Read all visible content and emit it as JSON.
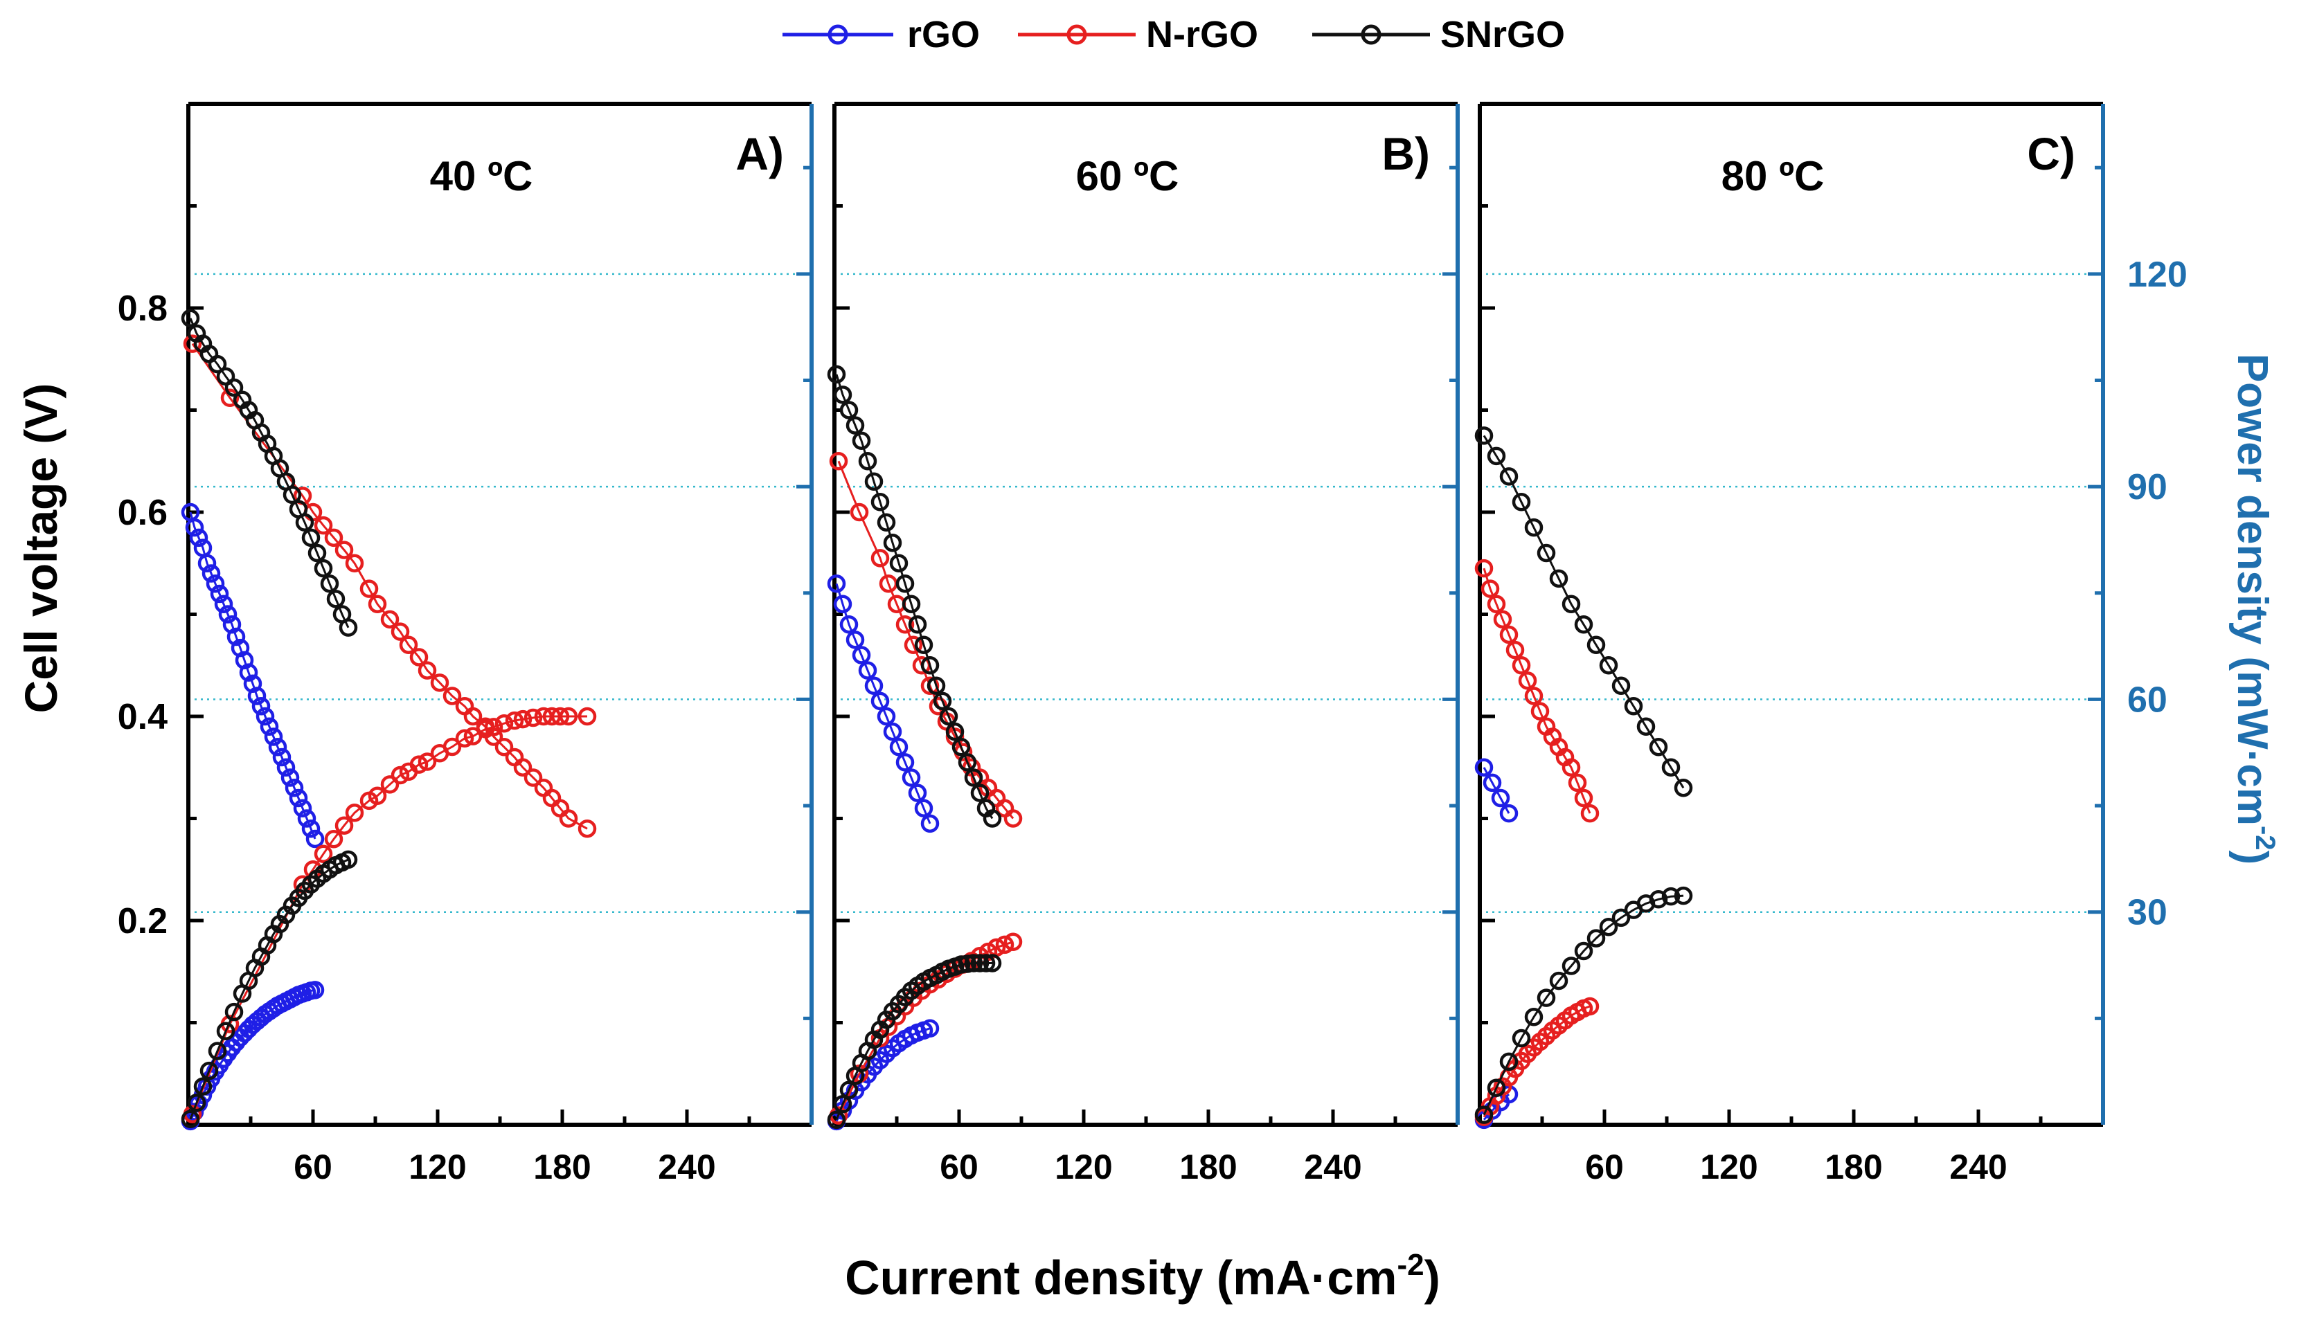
{
  "chart_data": {
    "type": "scatter",
    "xlabel_main": "Current density (mA·cm",
    "xlabel_sup": "-2",
    "xlabel_close": ")",
    "ylabel_left": "Cell voltage (V)",
    "ylabel_right_main": "Power density (mW·cm",
    "ylabel_right_sup": "-2",
    "ylabel_right_close": ")",
    "xlim": [
      0,
      300
    ],
    "ylim_left": [
      0,
      1.0
    ],
    "ylim_right": [
      0,
      144
    ],
    "x_ticks": [
      60,
      120,
      180,
      240
    ],
    "x_tick_labels": [
      "60",
      "120",
      "180",
      "240"
    ],
    "y_left_ticks": [
      0.2,
      0.4,
      0.6,
      0.8
    ],
    "y_left_tick_labels": [
      "0.2",
      "0.4",
      "0.6",
      "0.8"
    ],
    "y_right_ticks": [
      30,
      60,
      90,
      120
    ],
    "y_right_tick_labels": [
      "30",
      "60",
      "90",
      "120"
    ],
    "legend": [
      {
        "name": "rGO",
        "color": "#1f1fe6"
      },
      {
        "name": "N-rGO",
        "color": "#e61f1f"
      },
      {
        "name": "SNrGO",
        "color": "#111111"
      }
    ],
    "panels": [
      {
        "label": "A)",
        "temp": "40 ºC",
        "series": [
          {
            "name": "rGO",
            "color": "#1f1fe6",
            "voltage": {
              "x": [
                1,
                3,
                5,
                7,
                9,
                11,
                13,
                15,
                17,
                19,
                21,
                23,
                25,
                27,
                29,
                31,
                33,
                35,
                37,
                39,
                41,
                43,
                45,
                47,
                49,
                51,
                53,
                55,
                57,
                59,
                61
              ],
              "y": [
                0.6,
                0.585,
                0.575,
                0.565,
                0.55,
                0.54,
                0.53,
                0.52,
                0.51,
                0.5,
                0.49,
                0.478,
                0.467,
                0.455,
                0.443,
                0.432,
                0.42,
                0.41,
                0.4,
                0.39,
                0.38,
                0.37,
                0.36,
                0.35,
                0.34,
                0.33,
                0.32,
                0.31,
                0.3,
                0.29,
                0.28
              ]
            },
            "power": {
              "x": [
                1,
                3,
                5,
                7,
                9,
                11,
                13,
                15,
                17,
                19,
                21,
                23,
                25,
                27,
                29,
                31,
                33,
                35,
                37,
                39,
                41,
                43,
                45,
                47,
                49,
                51,
                53,
                55,
                57,
                59,
                61
              ],
              "y": [
                0.5,
                1.8,
                3,
                4.2,
                5.4,
                6.5,
                7.5,
                8.4,
                9.3,
                10.1,
                10.9,
                11.6,
                12.3,
                12.9,
                13.5,
                14.1,
                14.6,
                15.1,
                15.6,
                16,
                16.4,
                16.8,
                17.1,
                17.4,
                17.7,
                18,
                18.3,
                18.5,
                18.7,
                18.9,
                19
              ]
            }
          },
          {
            "name": "N-rGO",
            "color": "#e61f1f",
            "voltage": {
              "x": [
                2,
                20,
                55,
                60,
                65,
                70,
                75,
                80,
                87,
                91,
                97,
                102,
                106,
                111,
                115,
                121,
                127,
                133,
                137,
                143,
                147,
                152,
                157,
                161,
                166,
                171,
                175,
                179,
                183,
                192
              ],
              "y": [
                0.765,
                0.712,
                0.616,
                0.6,
                0.587,
                0.575,
                0.563,
                0.55,
                0.525,
                0.51,
                0.495,
                0.483,
                0.47,
                0.458,
                0.445,
                0.433,
                0.42,
                0.41,
                0.4,
                0.39,
                0.38,
                0.37,
                0.36,
                0.35,
                0.34,
                0.33,
                0.32,
                0.31,
                0.3,
                0.29
              ]
            },
            "power": {
              "x": [
                2,
                20,
                55,
                60,
                65,
                70,
                75,
                80,
                87,
                91,
                97,
                102,
                106,
                111,
                115,
                121,
                127,
                133,
                137,
                143,
                147,
                152,
                157,
                161,
                166,
                171,
                175,
                179,
                183,
                192
              ],
              "y": [
                1.5,
                14.2,
                33.9,
                36,
                38.2,
                40.3,
                42.2,
                44,
                45.7,
                46.4,
                48,
                49.3,
                49.8,
                50.8,
                51.2,
                52.4,
                53.3,
                54.5,
                54.8,
                55.8,
                56.1,
                56.6,
                57,
                57.2,
                57.4,
                57.6,
                57.6,
                57.6,
                57.6,
                57.6
              ]
            }
          },
          {
            "name": "SNrGO",
            "color": "#111111",
            "voltage": {
              "x": [
                1,
                4,
                7,
                10,
                14,
                18,
                22,
                26,
                29,
                32,
                35,
                38,
                41,
                44,
                47,
                50,
                53,
                56,
                59,
                62,
                65,
                68,
                71,
                74,
                77
              ],
              "y": [
                0.79,
                0.775,
                0.765,
                0.755,
                0.745,
                0.733,
                0.722,
                0.71,
                0.7,
                0.69,
                0.678,
                0.667,
                0.655,
                0.643,
                0.63,
                0.617,
                0.603,
                0.59,
                0.575,
                0.56,
                0.545,
                0.53,
                0.515,
                0.5,
                0.487
              ]
            },
            "power": {
              "x": [
                1,
                4,
                7,
                10,
                14,
                18,
                22,
                26,
                29,
                32,
                35,
                38,
                41,
                44,
                47,
                50,
                53,
                56,
                59,
                62,
                65,
                68,
                71,
                74,
                77
              ],
              "y": [
                0.8,
                3.1,
                5.4,
                7.6,
                10.4,
                13.2,
                15.9,
                18.5,
                20.3,
                22.1,
                23.7,
                25.3,
                26.9,
                28.3,
                29.6,
                30.9,
                32,
                33,
                33.9,
                34.7,
                35.4,
                36,
                36.6,
                37,
                37.4
              ]
            }
          }
        ]
      },
      {
        "label": "B)",
        "temp": "60 ºC",
        "series": [
          {
            "name": "rGO",
            "color": "#1f1fe6",
            "voltage": {
              "x": [
                1,
                4,
                7,
                10,
                13,
                16,
                19,
                22,
                25,
                28,
                31,
                34,
                37,
                40,
                43,
                46
              ],
              "y": [
                0.53,
                0.51,
                0.49,
                0.475,
                0.46,
                0.445,
                0.43,
                0.415,
                0.4,
                0.385,
                0.37,
                0.355,
                0.34,
                0.325,
                0.31,
                0.295
              ]
            },
            "power": {
              "x": [
                1,
                4,
                7,
                10,
                13,
                16,
                19,
                22,
                25,
                28,
                31,
                34,
                37,
                40,
                43,
                46
              ],
              "y": [
                0.5,
                2,
                3.4,
                4.8,
                6,
                7.1,
                8.2,
                9.1,
                10,
                10.8,
                11.5,
                12.1,
                12.6,
                13,
                13.3,
                13.6
              ]
            }
          },
          {
            "name": "N-rGO",
            "color": "#e61f1f",
            "voltage": {
              "x": [
                2,
                12,
                22,
                26,
                30,
                34,
                38,
                42,
                46,
                50,
                54,
                58,
                62,
                66,
                70,
                74,
                78,
                82,
                86
              ],
              "y": [
                0.65,
                0.6,
                0.555,
                0.53,
                0.51,
                0.49,
                0.47,
                0.45,
                0.43,
                0.41,
                0.395,
                0.38,
                0.365,
                0.35,
                0.34,
                0.33,
                0.32,
                0.31,
                0.3
              ]
            },
            "power": {
              "x": [
                2,
                12,
                22,
                26,
                30,
                34,
                38,
                42,
                46,
                50,
                54,
                58,
                62,
                66,
                70,
                74,
                78,
                82,
                86
              ],
              "y": [
                1.3,
                7.2,
                12.2,
                13.8,
                15.3,
                16.7,
                17.9,
                18.9,
                19.8,
                20.5,
                21.3,
                22,
                22.6,
                23.1,
                23.8,
                24.4,
                25,
                25.4,
                25.8
              ]
            }
          },
          {
            "name": "SNrGO",
            "color": "#111111",
            "voltage": {
              "x": [
                1,
                4,
                7,
                10,
                13,
                16,
                19,
                22,
                25,
                28,
                31,
                34,
                37,
                40,
                43,
                46,
                49,
                52,
                55,
                58,
                61,
                64,
                67,
                70,
                73,
                76
              ],
              "y": [
                0.735,
                0.715,
                0.7,
                0.685,
                0.67,
                0.65,
                0.63,
                0.61,
                0.59,
                0.57,
                0.55,
                0.53,
                0.51,
                0.49,
                0.47,
                0.45,
                0.43,
                0.415,
                0.4,
                0.385,
                0.37,
                0.355,
                0.34,
                0.325,
                0.31,
                0.3
              ]
            },
            "power": {
              "x": [
                1,
                4,
                7,
                10,
                13,
                16,
                19,
                22,
                25,
                28,
                31,
                34,
                37,
                40,
                43,
                46,
                49,
                52,
                55,
                58,
                61,
                64,
                67,
                70,
                73,
                76
              ],
              "y": [
                0.7,
                2.9,
                4.9,
                6.9,
                8.7,
                10.4,
                12,
                13.4,
                14.8,
                16,
                17,
                18,
                18.9,
                19.6,
                20.2,
                20.7,
                21.1,
                21.6,
                22,
                22.3,
                22.6,
                22.7,
                22.8,
                22.8,
                22.8,
                22.8
              ]
            }
          }
        ]
      },
      {
        "label": "C)",
        "temp": "80 ºC",
        "series": [
          {
            "name": "rGO",
            "color": "#1f1fe6",
            "voltage": {
              "x": [
                2,
                6,
                10,
                14
              ],
              "y": [
                0.35,
                0.335,
                0.32,
                0.305
              ]
            },
            "power": {
              "x": [
                2,
                6,
                10,
                14
              ],
              "y": [
                0.7,
                2,
                3.2,
                4.3
              ]
            }
          },
          {
            "name": "N-rGO",
            "color": "#e61f1f",
            "voltage": {
              "x": [
                2,
                5,
                8,
                11,
                14,
                17,
                20,
                23,
                26,
                29,
                32,
                35,
                38,
                41,
                44,
                47,
                50,
                53
              ],
              "y": [
                0.545,
                0.525,
                0.51,
                0.495,
                0.48,
                0.465,
                0.45,
                0.435,
                0.42,
                0.405,
                0.39,
                0.38,
                0.37,
                0.36,
                0.35,
                0.335,
                0.32,
                0.305
              ]
            },
            "power": {
              "x": [
                2,
                5,
                8,
                11,
                14,
                17,
                20,
                23,
                26,
                29,
                32,
                35,
                38,
                41,
                44,
                47,
                50,
                53
              ],
              "y": [
                1.1,
                2.6,
                4.1,
                5.4,
                6.7,
                7.9,
                9,
                10,
                10.9,
                11.7,
                12.5,
                13.3,
                14,
                14.7,
                15.4,
                15.9,
                16.4,
                16.7
              ]
            }
          },
          {
            "name": "SNrGO",
            "color": "#111111",
            "voltage": {
              "x": [
                2,
                8,
                14,
                20,
                26,
                32,
                38,
                44,
                50,
                56,
                62,
                68,
                74,
                80,
                86,
                92,
                98
              ],
              "y": [
                0.675,
                0.655,
                0.635,
                0.61,
                0.585,
                0.56,
                0.535,
                0.51,
                0.49,
                0.47,
                0.45,
                0.43,
                0.41,
                0.39,
                0.37,
                0.35,
                0.33
              ]
            },
            "power": {
              "x": [
                2,
                8,
                14,
                20,
                26,
                32,
                38,
                44,
                50,
                56,
                62,
                68,
                74,
                80,
                86,
                92,
                98
              ],
              "y": [
                1.4,
                5.2,
                8.9,
                12.2,
                15.2,
                17.9,
                20.3,
                22.4,
                24.5,
                26.3,
                27.9,
                29.2,
                30.3,
                31.2,
                31.8,
                32.2,
                32.3
              ]
            }
          }
        ]
      }
    ]
  }
}
